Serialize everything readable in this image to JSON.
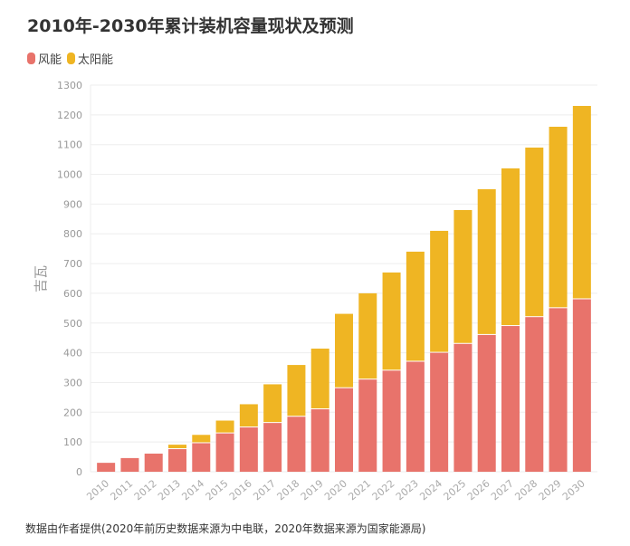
{
  "chart_data": {
    "type": "bar",
    "stacked": true,
    "title": "2010年-2030年累计装机容量现状及预测",
    "ylabel": "吉瓦",
    "xlabel": "",
    "ylim": [
      0,
      1300
    ],
    "yticks": [
      0,
      100,
      200,
      300,
      400,
      500,
      600,
      700,
      800,
      900,
      1000,
      1100,
      1200,
      1300
    ],
    "grid": true,
    "legend": "top-left",
    "categories": [
      "2010",
      "2011",
      "2012",
      "2013",
      "2014",
      "2015",
      "2016",
      "2017",
      "2018",
      "2019",
      "2020",
      "2021",
      "2022",
      "2023",
      "2024",
      "2025",
      "2026",
      "2027",
      "2028",
      "2029",
      "2030"
    ],
    "series": [
      {
        "name": "风能",
        "color": "#e8736b",
        "values": [
          30,
          46,
          61,
          76,
          96,
          129,
          149,
          164,
          185,
          210,
          281,
          310,
          340,
          370,
          400,
          430,
          460,
          490,
          520,
          550,
          580
        ]
      },
      {
        "name": "太阳能",
        "color": "#efb523",
        "values": [
          1,
          1,
          3,
          15,
          28,
          43,
          78,
          130,
          174,
          204,
          250,
          290,
          330,
          370,
          410,
          450,
          490,
          530,
          570,
          610,
          650
        ]
      }
    ],
    "note": "数据由作者提供(2020年前历史数据来源为中电联，2020年数据来源为国家能源局)"
  }
}
